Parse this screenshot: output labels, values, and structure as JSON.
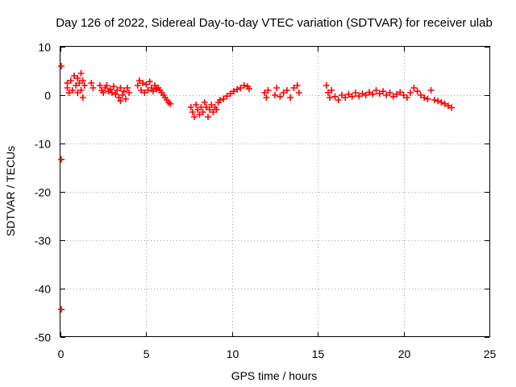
{
  "chart_data": {
    "type": "scatter",
    "title": "Day 126 of 2022, Sidereal Day-to-day VTEC variation (SDTVAR) for receiver ulab",
    "xlabel": "GPS time / hours",
    "ylabel": "SDTVAR / TECUs",
    "xlim": [
      0,
      25
    ],
    "ylim": [
      -50,
      10
    ],
    "xticks": [
      0,
      5,
      10,
      15,
      20,
      25
    ],
    "yticks": [
      10,
      0,
      -10,
      -20,
      -30,
      -40,
      -50
    ],
    "grid": true,
    "marker": "+",
    "color": "#ff0000",
    "series": [
      {
        "name": "SDTVAR",
        "points": [
          [
            0.05,
            6.0
          ],
          [
            0.05,
            -13.3
          ],
          [
            0.05,
            -44.3
          ],
          [
            0.4,
            2.5
          ],
          [
            0.4,
            1.5
          ],
          [
            0.5,
            0.5
          ],
          [
            0.6,
            3.0
          ],
          [
            0.7,
            1.0
          ],
          [
            0.8,
            4.0
          ],
          [
            0.9,
            2.0
          ],
          [
            1.0,
            3.5
          ],
          [
            1.0,
            0.5
          ],
          [
            1.1,
            2.5
          ],
          [
            1.2,
            4.5
          ],
          [
            1.2,
            1.0
          ],
          [
            1.3,
            3.0
          ],
          [
            1.3,
            -0.5
          ],
          [
            1.4,
            2.0
          ],
          [
            1.8,
            2.5
          ],
          [
            1.9,
            1.5
          ],
          [
            2.3,
            2.0
          ],
          [
            2.4,
            1.0
          ],
          [
            2.5,
            0.5
          ],
          [
            2.6,
            1.5
          ],
          [
            2.7,
            2.0
          ],
          [
            2.8,
            0.8
          ],
          [
            2.9,
            1.2
          ],
          [
            3.0,
            0.5
          ],
          [
            3.1,
            1.8
          ],
          [
            3.2,
            0.2
          ],
          [
            3.3,
            1.0
          ],
          [
            3.4,
            -0.5
          ],
          [
            3.5,
            -1.2
          ],
          [
            3.5,
            1.5
          ],
          [
            3.6,
            0.0
          ],
          [
            3.7,
            0.8
          ],
          [
            3.8,
            -0.8
          ],
          [
            3.9,
            1.5
          ],
          [
            4.0,
            0.5
          ],
          [
            4.5,
            2.0
          ],
          [
            4.6,
            3.0
          ],
          [
            4.7,
            1.0
          ],
          [
            4.8,
            2.5
          ],
          [
            4.9,
            0.5
          ],
          [
            5.0,
            2.2
          ],
          [
            5.1,
            1.0
          ],
          [
            5.2,
            2.8
          ],
          [
            5.3,
            1.5
          ],
          [
            5.4,
            0.8
          ],
          [
            5.5,
            2.0
          ],
          [
            5.6,
            1.2
          ],
          [
            5.7,
            1.5
          ],
          [
            5.8,
            1.0
          ],
          [
            5.9,
            0.5
          ],
          [
            6.0,
            0.0
          ],
          [
            6.1,
            -0.5
          ],
          [
            6.2,
            -1.0
          ],
          [
            6.3,
            -1.5
          ],
          [
            6.4,
            -1.8
          ],
          [
            7.6,
            -2.5
          ],
          [
            7.7,
            -3.5
          ],
          [
            7.8,
            -4.5
          ],
          [
            7.9,
            -2.0
          ],
          [
            8.0,
            -3.0
          ],
          [
            8.1,
            -4.0
          ],
          [
            8.2,
            -2.5
          ],
          [
            8.3,
            -3.5
          ],
          [
            8.4,
            -1.5
          ],
          [
            8.5,
            -2.5
          ],
          [
            8.6,
            -4.5
          ],
          [
            8.7,
            -3.0
          ],
          [
            8.8,
            -2.0
          ],
          [
            8.9,
            -3.5
          ],
          [
            9.0,
            -2.5
          ],
          [
            9.1,
            -3.0
          ],
          [
            9.2,
            -1.5
          ],
          [
            9.3,
            -1.0
          ],
          [
            9.5,
            -0.8
          ],
          [
            9.7,
            -0.2
          ],
          [
            9.9,
            0.3
          ],
          [
            10.1,
            0.8
          ],
          [
            10.3,
            1.2
          ],
          [
            10.5,
            1.5
          ],
          [
            10.7,
            2.0
          ],
          [
            10.9,
            1.8
          ],
          [
            11.0,
            1.3
          ],
          [
            11.9,
            0.5
          ],
          [
            12.0,
            -0.5
          ],
          [
            12.1,
            1.0
          ],
          [
            12.5,
            0.0
          ],
          [
            12.6,
            1.5
          ],
          [
            12.8,
            -0.3
          ],
          [
            13.0,
            0.5
          ],
          [
            13.2,
            1.0
          ],
          [
            13.4,
            -0.5
          ],
          [
            13.6,
            1.5
          ],
          [
            13.8,
            2.0
          ],
          [
            13.9,
            0.5
          ],
          [
            15.5,
            2.0
          ],
          [
            15.6,
            0.5
          ],
          [
            15.7,
            -0.5
          ],
          [
            15.8,
            1.0
          ],
          [
            16.0,
            -0.3
          ],
          [
            16.2,
            -1.0
          ],
          [
            16.4,
            0.0
          ],
          [
            16.6,
            -0.5
          ],
          [
            16.8,
            0.2
          ],
          [
            17.0,
            -0.3
          ],
          [
            17.2,
            0.5
          ],
          [
            17.4,
            -0.2
          ],
          [
            17.6,
            0.3
          ],
          [
            17.8,
            0.0
          ],
          [
            18.0,
            0.6
          ],
          [
            18.2,
            0.2
          ],
          [
            18.4,
            1.0
          ],
          [
            18.6,
            0.3
          ],
          [
            18.8,
            0.8
          ],
          [
            19.0,
            0.0
          ],
          [
            19.2,
            0.5
          ],
          [
            19.4,
            -0.3
          ],
          [
            19.6,
            0.2
          ],
          [
            19.8,
            0.6
          ],
          [
            20.0,
            0.0
          ],
          [
            20.2,
            -0.5
          ],
          [
            20.4,
            0.5
          ],
          [
            20.6,
            1.5
          ],
          [
            20.8,
            0.8
          ],
          [
            21.0,
            0.0
          ],
          [
            21.2,
            -0.5
          ],
          [
            21.4,
            -0.8
          ],
          [
            21.6,
            1.0
          ],
          [
            21.8,
            -1.0
          ],
          [
            22.0,
            -1.2
          ],
          [
            22.2,
            -1.5
          ],
          [
            22.4,
            -1.8
          ],
          [
            22.6,
            -2.2
          ],
          [
            22.8,
            -2.6
          ]
        ]
      }
    ]
  }
}
